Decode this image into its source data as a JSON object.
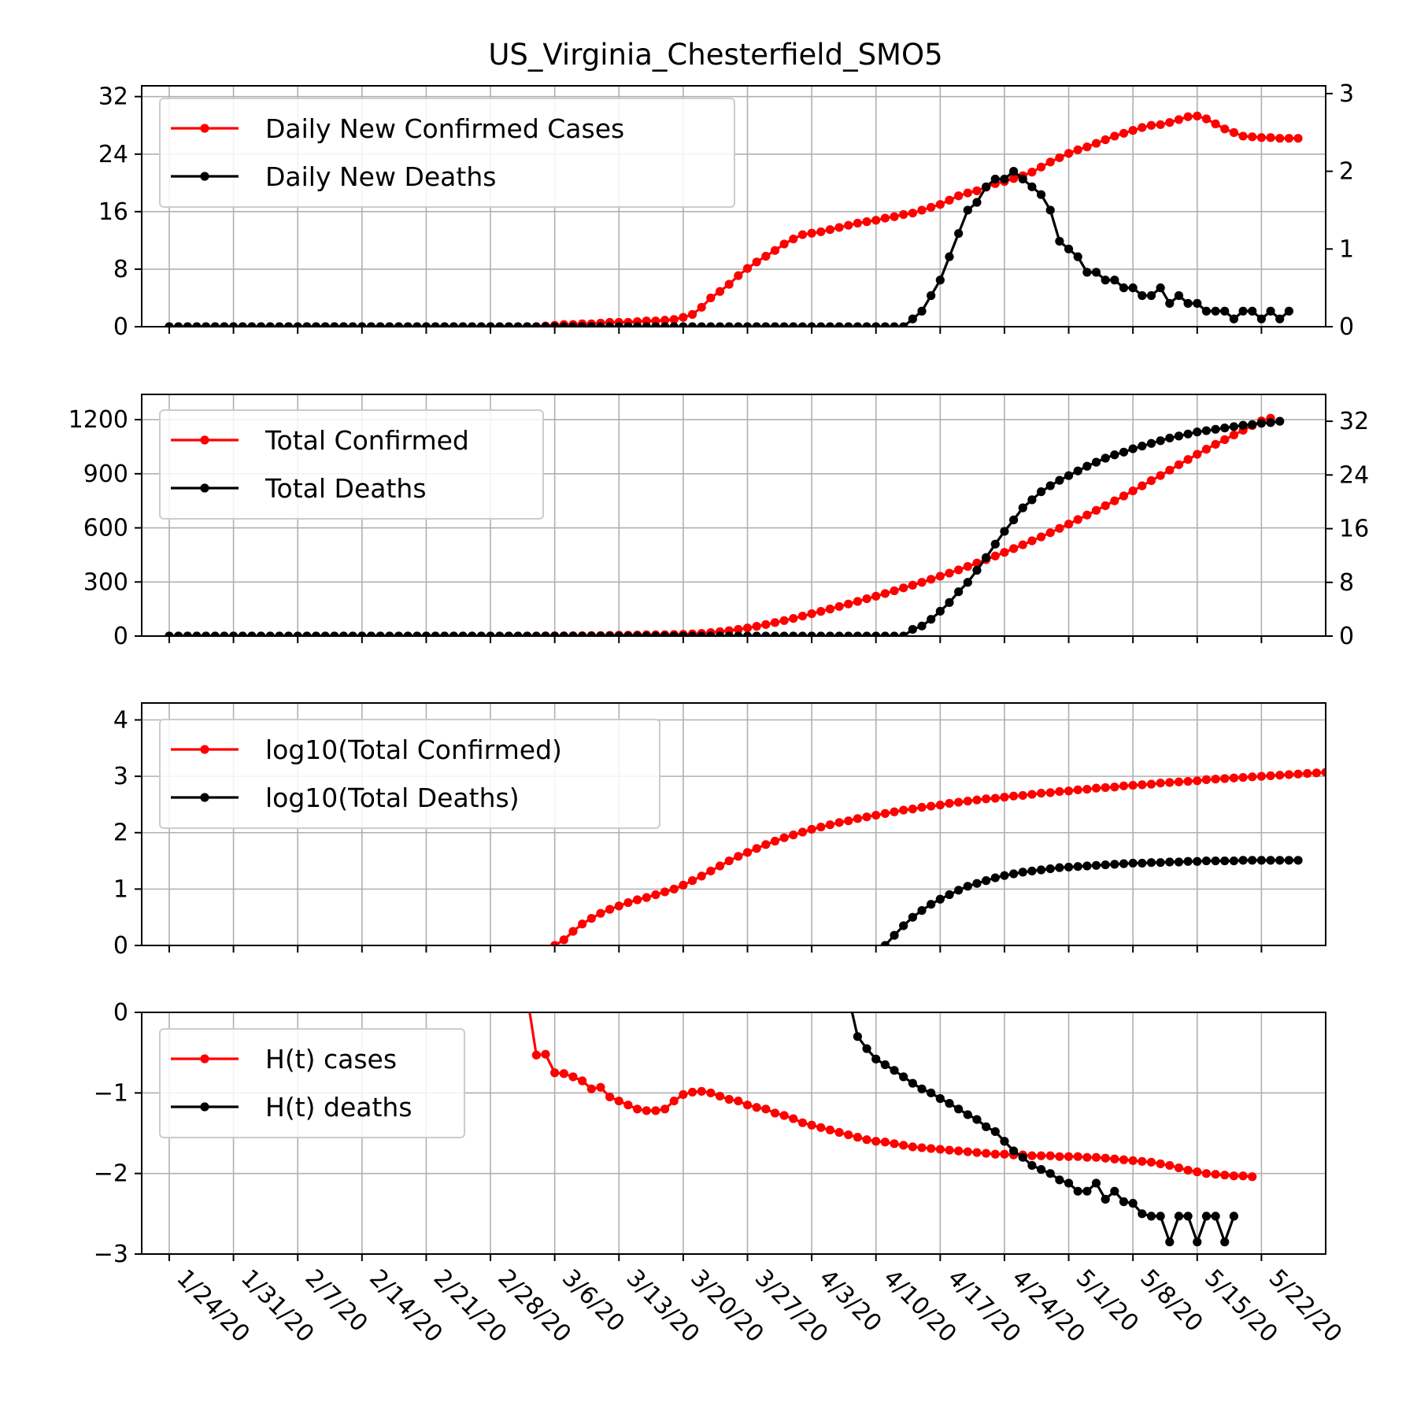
{
  "title": "US_Virginia_Chesterfield_SMO5",
  "colors": {
    "cases": "#ff0000",
    "deaths": "#000000",
    "grid": "#b0b0b0"
  },
  "x_tick_labels": [
    "1/24/20",
    "1/31/20",
    "2/7/20",
    "2/14/20",
    "2/21/20",
    "2/28/20",
    "3/6/20",
    "3/13/20",
    "3/20/20",
    "3/27/20",
    "4/3/20",
    "4/10/20",
    "4/17/20",
    "4/24/20",
    "5/1/20",
    "5/8/20",
    "5/15/20",
    "5/22/20"
  ],
  "chart_data": [
    {
      "type": "line",
      "panel": "daily",
      "xlim": [
        "1/21/20",
        "5/29/20"
      ],
      "ylim_left": [
        0,
        33.5
      ],
      "ylim_right": [
        0,
        3.1
      ],
      "yticks_left": [
        0,
        8,
        16,
        24,
        32
      ],
      "yticks_right": [
        0,
        1,
        2,
        3
      ],
      "legend_position": "upper-left",
      "grid": true,
      "series": [
        {
          "name": "Daily New Confirmed Cases",
          "axis": "left",
          "x_start": "1/24/20",
          "values": [
            0,
            0,
            0,
            0,
            0,
            0,
            0,
            0,
            0,
            0,
            0,
            0,
            0,
            0,
            0,
            0,
            0,
            0,
            0,
            0,
            0,
            0,
            0,
            0,
            0,
            0,
            0,
            0,
            0,
            0,
            0,
            0,
            0,
            0,
            0,
            0,
            0,
            0,
            0,
            0,
            0,
            0.1,
            0.2,
            0.3,
            0.3,
            0.4,
            0.4,
            0.5,
            0.6,
            0.6,
            0.6,
            0.7,
            0.8,
            0.8,
            0.9,
            1.0,
            1.3,
            1.7,
            2.7,
            4.0,
            4.9,
            5.9,
            7.1,
            8.1,
            9.0,
            9.8,
            10.6,
            11.5,
            12.2,
            12.8,
            13.0,
            13.2,
            13.5,
            13.8,
            14.1,
            14.4,
            14.6,
            14.8,
            15.1,
            15.3,
            15.6,
            15.8,
            16.2,
            16.6,
            17.0,
            17.6,
            18.2,
            18.6,
            18.9,
            19.4,
            19.9,
            20.2,
            20.6,
            21.0,
            21.5,
            22.2,
            22.9,
            23.5,
            24.1,
            24.6,
            25.0,
            25.5,
            26.0,
            26.5,
            26.9,
            27.3,
            27.7,
            28.0,
            28.1,
            28.4,
            28.8,
            29.2,
            29.3,
            28.9,
            28.2,
            27.5,
            27.0,
            26.5,
            26.4,
            26.3,
            26.3,
            26.2,
            26.2,
            26.2
          ]
        },
        {
          "name": "Daily New Deaths",
          "axis": "right",
          "x_start": "1/24/20",
          "values": [
            0,
            0,
            0,
            0,
            0,
            0,
            0,
            0,
            0,
            0,
            0,
            0,
            0,
            0,
            0,
            0,
            0,
            0,
            0,
            0,
            0,
            0,
            0,
            0,
            0,
            0,
            0,
            0,
            0,
            0,
            0,
            0,
            0,
            0,
            0,
            0,
            0,
            0,
            0,
            0,
            0,
            0,
            0,
            0,
            0,
            0,
            0,
            0,
            0,
            0,
            0,
            0,
            0,
            0,
            0,
            0,
            0,
            0,
            0,
            0,
            0,
            0,
            0,
            0,
            0,
            0,
            0,
            0,
            0,
            0,
            0,
            0,
            0,
            0,
            0,
            0,
            0,
            0,
            0,
            0,
            0,
            0.1,
            0.2,
            0.4,
            0.6,
            0.9,
            1.2,
            1.5,
            1.6,
            1.8,
            1.9,
            1.9,
            2.0,
            1.9,
            1.8,
            1.7,
            1.5,
            1.1,
            1.0,
            0.9,
            0.7,
            0.7,
            0.6,
            0.6,
            0.5,
            0.5,
            0.4,
            0.4,
            0.5,
            0.3,
            0.4,
            0.3,
            0.3,
            0.2,
            0.2,
            0.2,
            0.1,
            0.2,
            0.2,
            0.1,
            0.2,
            0.1,
            0.2
          ]
        }
      ]
    },
    {
      "type": "line",
      "panel": "total",
      "xlim": [
        "1/21/20",
        "5/29/20"
      ],
      "ylim_left": [
        0,
        1340
      ],
      "ylim_right": [
        0,
        36
      ],
      "yticks_left": [
        0,
        300,
        600,
        900,
        1200
      ],
      "yticks_right": [
        0,
        8,
        16,
        24,
        32
      ],
      "legend_position": "upper-left",
      "grid": true,
      "series": [
        {
          "name": "Total Confirmed",
          "axis": "left",
          "x_start": "1/24/20",
          "values": [
            0,
            0,
            0,
            0,
            0,
            0,
            0,
            0,
            0,
            0,
            0,
            0,
            0,
            0,
            0,
            0,
            0,
            0,
            0,
            0,
            0,
            0,
            0,
            0,
            0,
            0,
            0,
            0,
            0,
            0,
            0,
            0,
            0,
            0,
            0,
            0,
            0,
            0,
            0,
            0,
            0,
            1,
            1,
            1,
            2,
            2,
            3,
            3,
            4,
            5,
            5,
            6,
            7,
            7,
            8,
            9,
            10,
            12,
            15,
            19,
            24,
            30,
            37,
            45,
            54,
            64,
            75,
            86,
            98,
            111,
            124,
            137,
            150,
            164,
            178,
            192,
            207,
            221,
            236,
            251,
            267,
            282,
            298,
            315,
            332,
            349,
            367,
            386,
            405,
            424,
            444,
            464,
            485,
            506,
            528,
            550,
            573,
            597,
            621,
            646,
            671,
            697,
            723,
            750,
            777,
            805,
            833,
            862,
            890,
            920,
            950,
            979,
            1008,
            1036,
            1063,
            1089,
            1115,
            1141,
            1167,
            1193,
            1208
          ]
        },
        {
          "name": "Total Deaths",
          "axis": "right",
          "x_start": "1/24/20",
          "values": [
            0,
            0,
            0,
            0,
            0,
            0,
            0,
            0,
            0,
            0,
            0,
            0,
            0,
            0,
            0,
            0,
            0,
            0,
            0,
            0,
            0,
            0,
            0,
            0,
            0,
            0,
            0,
            0,
            0,
            0,
            0,
            0,
            0,
            0,
            0,
            0,
            0,
            0,
            0,
            0,
            0,
            0,
            0,
            0,
            0,
            0,
            0,
            0,
            0,
            0,
            0,
            0,
            0,
            0,
            0,
            0,
            0,
            0,
            0,
            0,
            0,
            0,
            0,
            0,
            0,
            0,
            0,
            0,
            0,
            0,
            0,
            0,
            0,
            0,
            0,
            0,
            0,
            0,
            0,
            0,
            0,
            1,
            1.5,
            2.5,
            3.7,
            5,
            6.6,
            8,
            9.8,
            11.7,
            13.7,
            15.6,
            17.3,
            19.1,
            20.3,
            21.5,
            22.4,
            23.2,
            23.9,
            24.6,
            25.3,
            25.9,
            26.5,
            27.0,
            27.4,
            27.9,
            28.3,
            28.7,
            29.1,
            29.5,
            29.8,
            30.1,
            30.4,
            30.6,
            30.8,
            31.0,
            31.2,
            31.4,
            31.5,
            31.7,
            31.8,
            32.0
          ]
        }
      ]
    },
    {
      "type": "line",
      "panel": "log",
      "xlim": [
        "1/21/20",
        "5/29/20"
      ],
      "ylim_left": [
        0,
        4.3
      ],
      "yticks_left": [
        0,
        1,
        2,
        3,
        4
      ],
      "legend_position": "upper-left",
      "grid": true,
      "series": [
        {
          "name": "log10(Total Confirmed)",
          "axis": "left",
          "x_start": "3/6/20",
          "values": [
            0.0,
            0.1,
            0.25,
            0.38,
            0.48,
            0.57,
            0.64,
            0.7,
            0.76,
            0.81,
            0.85,
            0.9,
            0.95,
            1.0,
            1.07,
            1.15,
            1.23,
            1.32,
            1.41,
            1.5,
            1.58,
            1.65,
            1.72,
            1.79,
            1.85,
            1.91,
            1.96,
            2.01,
            2.06,
            2.1,
            2.14,
            2.18,
            2.21,
            2.25,
            2.28,
            2.31,
            2.34,
            2.37,
            2.4,
            2.42,
            2.45,
            2.47,
            2.49,
            2.52,
            2.54,
            2.56,
            2.58,
            2.6,
            2.61,
            2.63,
            2.65,
            2.66,
            2.68,
            2.7,
            2.71,
            2.73,
            2.74,
            2.76,
            2.77,
            2.79,
            2.8,
            2.81,
            2.83,
            2.84,
            2.85,
            2.86,
            2.88,
            2.89,
            2.9,
            2.91,
            2.92,
            2.94,
            2.95,
            2.96,
            2.97,
            2.98,
            2.99,
            3.0,
            3.01,
            3.02,
            3.03,
            3.04,
            3.05,
            3.06,
            3.07,
            3.08
          ]
        },
        {
          "name": "log10(Total Deaths)",
          "axis": "left",
          "x_start": "4/11/20",
          "values": [
            0.0,
            0.18,
            0.35,
            0.5,
            0.62,
            0.73,
            0.82,
            0.9,
            0.98,
            1.05,
            1.1,
            1.15,
            1.2,
            1.24,
            1.27,
            1.3,
            1.32,
            1.34,
            1.36,
            1.38,
            1.39,
            1.4,
            1.41,
            1.42,
            1.43,
            1.44,
            1.45,
            1.46,
            1.46,
            1.47,
            1.47,
            1.48,
            1.48,
            1.49,
            1.49,
            1.5,
            1.5,
            1.5,
            1.5,
            1.51,
            1.51,
            1.51,
            1.51,
            1.51,
            1.51,
            1.51
          ]
        }
      ]
    },
    {
      "type": "line",
      "panel": "hurst",
      "xlim": [
        "1/21/20",
        "5/29/20"
      ],
      "ylim_left": [
        -3,
        0
      ],
      "yticks_left": [
        -3,
        -2,
        -1,
        0
      ],
      "legend_position": "upper-left",
      "grid": true,
      "series": [
        {
          "name": "H(t) cases",
          "axis": "left",
          "x_start": "3/3/20",
          "values": [
            0.2,
            -0.53,
            -0.52,
            -0.75,
            -0.76,
            -0.8,
            -0.85,
            -0.95,
            -0.93,
            -1.05,
            -1.1,
            -1.15,
            -1.2,
            -1.22,
            -1.22,
            -1.2,
            -1.1,
            -1.02,
            -0.99,
            -0.98,
            -1.0,
            -1.04,
            -1.08,
            -1.1,
            -1.15,
            -1.18,
            -1.2,
            -1.25,
            -1.28,
            -1.32,
            -1.37,
            -1.4,
            -1.43,
            -1.46,
            -1.49,
            -1.52,
            -1.55,
            -1.58,
            -1.6,
            -1.61,
            -1.63,
            -1.65,
            -1.67,
            -1.68,
            -1.69,
            -1.7,
            -1.71,
            -1.72,
            -1.73,
            -1.74,
            -1.75,
            -1.76,
            -1.76,
            -1.77,
            -1.77,
            -1.78,
            -1.78,
            -1.78,
            -1.79,
            -1.79,
            -1.79,
            -1.8,
            -1.8,
            -1.81,
            -1.82,
            -1.83,
            -1.84,
            -1.85,
            -1.86,
            -1.88,
            -1.9,
            -1.93,
            -1.96,
            -1.98,
            -2.0,
            -2.01,
            -2.02,
            -2.03,
            -2.03,
            -2.04
          ]
        },
        {
          "name": "H(t) deaths",
          "axis": "left",
          "x_start": "4/7/20",
          "values": [
            0.2,
            -0.3,
            -0.45,
            -0.58,
            -0.65,
            -0.72,
            -0.8,
            -0.88,
            -0.95,
            -1.0,
            -1.07,
            -1.13,
            -1.2,
            -1.27,
            -1.33,
            -1.42,
            -1.48,
            -1.6,
            -1.72,
            -1.8,
            -1.9,
            -1.95,
            -2.0,
            -2.08,
            -2.12,
            -2.22,
            -2.22,
            -2.12,
            -2.32,
            -2.22,
            -2.35,
            -2.37,
            -2.5,
            -2.53,
            -2.53,
            -2.85,
            -2.53,
            -2.53,
            -2.85,
            -2.53,
            -2.53,
            -2.85,
            -2.53
          ]
        }
      ]
    }
  ]
}
